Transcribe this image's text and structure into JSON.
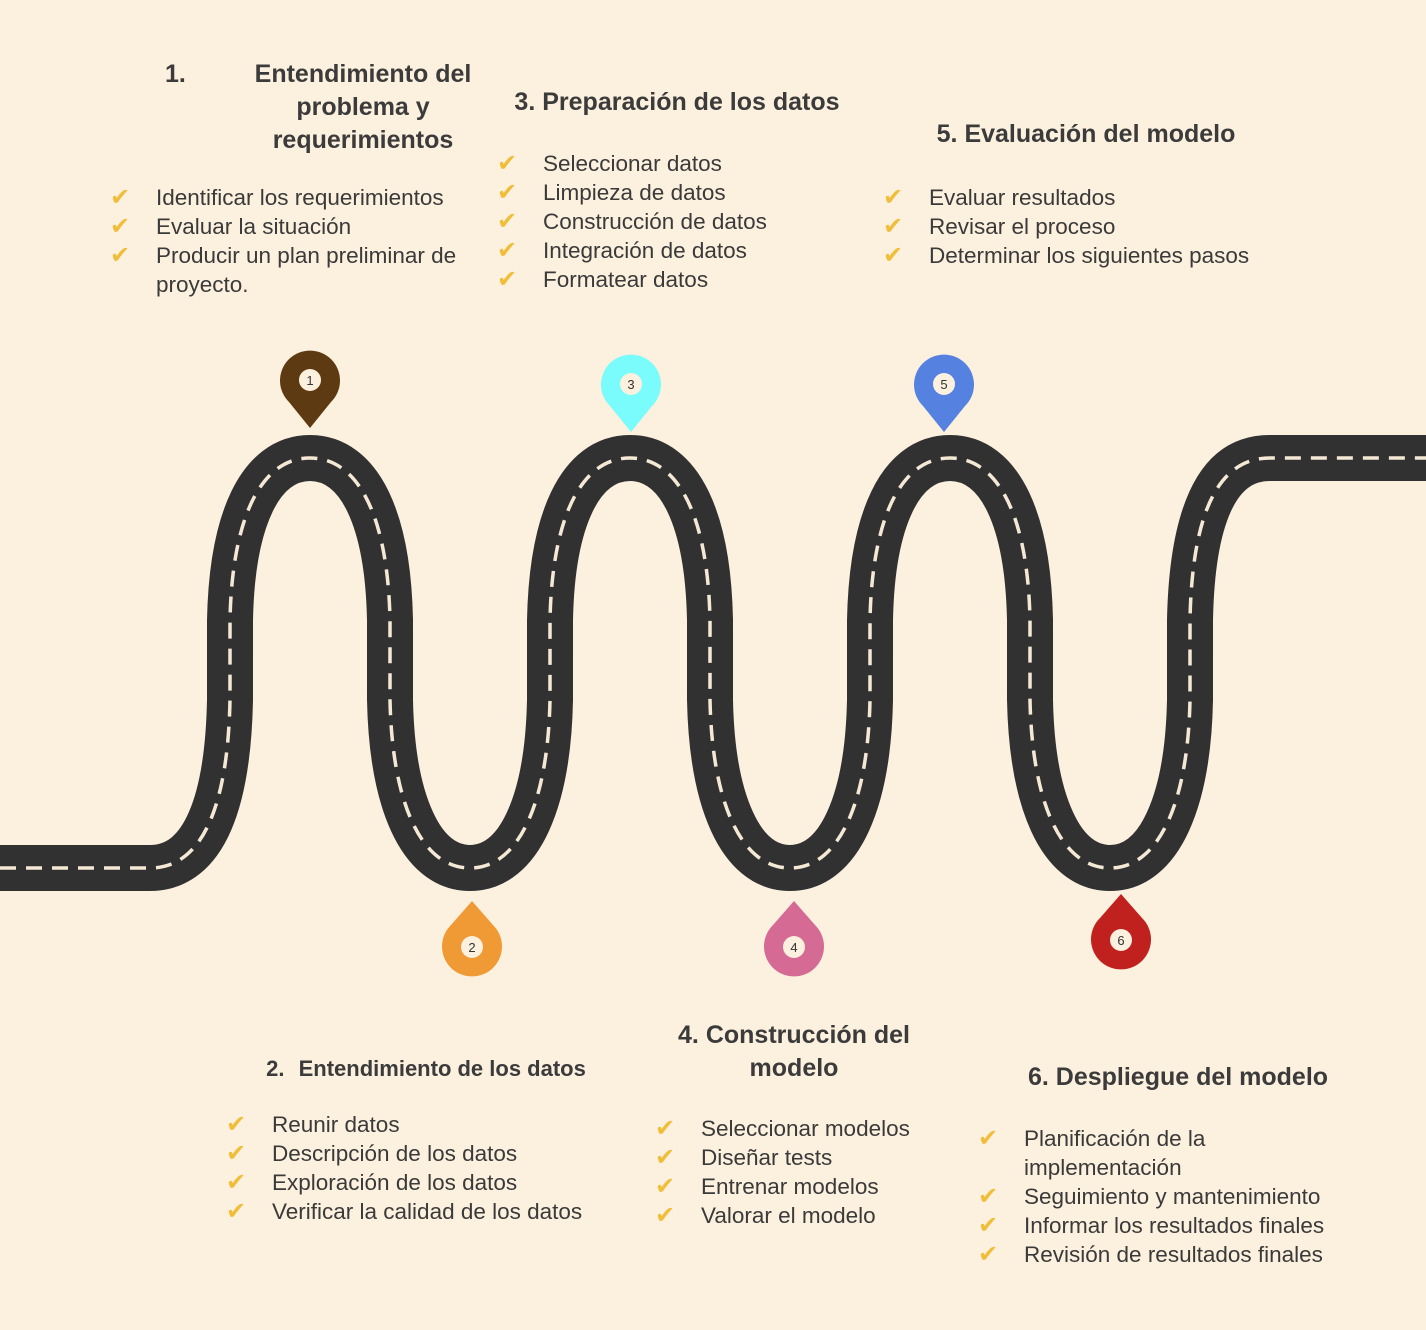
{
  "colors": {
    "background": "#fcf0de",
    "road": "#313131",
    "lane": "#f5e9d6",
    "check": "#f1be3a",
    "text": "#3a3a3a"
  },
  "markers": [
    {
      "label": "1",
      "color": "#5d3a12"
    },
    {
      "label": "2",
      "color": "#f09a35"
    },
    {
      "label": "3",
      "color": "#7afcfd"
    },
    {
      "label": "4",
      "color": "#d56b95"
    },
    {
      "label": "5",
      "color": "#5582e0"
    },
    {
      "label": "6",
      "color": "#c0211e"
    }
  ],
  "steps": [
    {
      "number": "1.",
      "title": "Entendimiento del problema y requerimientos",
      "items": [
        "Identificar los requerimientos",
        "Evaluar la situación",
        "Producir un plan preliminar de proyecto."
      ]
    },
    {
      "number": "2.",
      "title": "Entendimiento de los datos",
      "items": [
        "Reunir datos",
        "Descripción de los datos",
        "Exploración de los datos",
        "Verificar la calidad de los datos"
      ]
    },
    {
      "number": "3.",
      "title": "Preparación de los datos",
      "items": [
        "Seleccionar datos",
        "Limpieza de datos",
        "Construcción de datos",
        "Integración de datos",
        "Formatear datos"
      ]
    },
    {
      "number": "4.",
      "title": "Construcción del modelo",
      "items": [
        "Seleccionar modelos",
        "Diseñar tests",
        "Entrenar modelos",
        "Valorar el modelo"
      ]
    },
    {
      "number": "5.",
      "title": "Evaluación del modelo",
      "items": [
        "Evaluar resultados",
        "Revisar el proceso",
        "Determinar los siguientes pasos"
      ]
    },
    {
      "number": "6.",
      "title": "Despliegue del modelo",
      "items": [
        "Planificación de la implementación",
        "Seguimiento y mantenimiento",
        "Informar los resultados finales",
        "Revisión de resultados finales"
      ]
    }
  ]
}
